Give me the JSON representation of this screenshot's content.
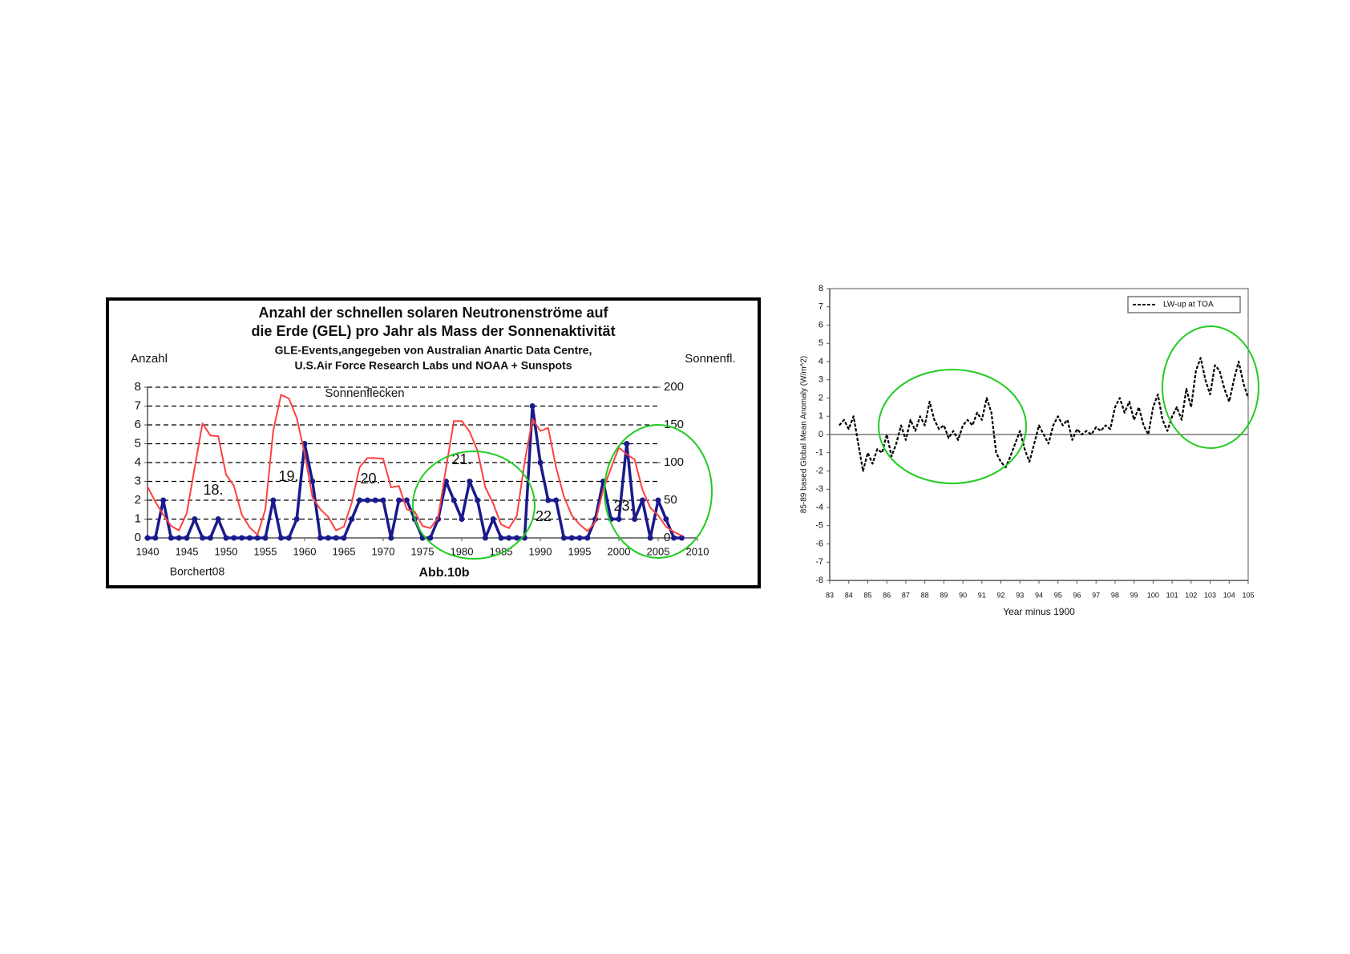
{
  "chart_data": [
    {
      "type": "line",
      "title": [
        "Anzahl der schnellen solaren Neutronenströme auf",
        "die Erde (GEL) pro Jahr als Mass der Sonnenaktivität"
      ],
      "subtitle": [
        "GLE-Events,angegeben von Australian Anartic Data Centre,",
        "U.S.Air Force Research Labs und NOAA + Sunspots"
      ],
      "ylabel": "Anzahl",
      "y2label": "Sonnenfl.",
      "annotations": [
        "Sonnenflecken",
        "18.",
        "19.",
        "20.",
        "21.",
        "22",
        "23.",
        "Borchert08",
        "Abb.10b"
      ],
      "xlim": [
        1940,
        2010
      ],
      "xticks": [
        1940,
        1945,
        1950,
        1955,
        1960,
        1965,
        1970,
        1975,
        1980,
        1985,
        1990,
        1995,
        2000,
        2005,
        2010
      ],
      "ylim": [
        0,
        8
      ],
      "yticks": [
        0,
        1,
        2,
        3,
        4,
        5,
        6,
        7,
        8
      ],
      "y2lim": [
        0,
        200
      ],
      "y2ticks": [
        0,
        50,
        100,
        150,
        200
      ],
      "grid": true,
      "x": [
        1940,
        1941,
        1942,
        1943,
        1944,
        1945,
        1946,
        1947,
        1948,
        1949,
        1950,
        1951,
        1952,
        1953,
        1954,
        1955,
        1956,
        1957,
        1958,
        1959,
        1960,
        1961,
        1962,
        1963,
        1964,
        1965,
        1966,
        1967,
        1968,
        1969,
        1970,
        1971,
        1972,
        1973,
        1974,
        1975,
        1976,
        1977,
        1978,
        1979,
        1980,
        1981,
        1982,
        1983,
        1984,
        1985,
        1986,
        1987,
        1988,
        1989,
        1990,
        1991,
        1992,
        1993,
        1994,
        1995,
        1996,
        1997,
        1998,
        1999,
        2000,
        2001,
        2002,
        2003,
        2004,
        2005,
        2006,
        2007,
        2008
      ],
      "series": [
        {
          "color": "#1a1a8c",
          "markers": true,
          "values": [
            0,
            0,
            2,
            0,
            0,
            0,
            1,
            0,
            0,
            1,
            0,
            0,
            0,
            0,
            0,
            0,
            2,
            0,
            0,
            1,
            5,
            3,
            0,
            0,
            0,
            0,
            1,
            2,
            2,
            2,
            2,
            0,
            2,
            2,
            1,
            0,
            0,
            1,
            3,
            2,
            1,
            3,
            2,
            0,
            1,
            0,
            0,
            0,
            0,
            7,
            4,
            2,
            2,
            0,
            0,
            0,
            0,
            1,
            3,
            1,
            1,
            5,
            1,
            2,
            0,
            2,
            1,
            0,
            0
          ]
        },
        {
          "name": "Sonnenflecken",
          "color": "#ff4040",
          "axis": "y2",
          "values": [
            68,
            48,
            31,
            16,
            10,
            33,
            93,
            152,
            136,
            135,
            84,
            69,
            31,
            14,
            4,
            38,
            142,
            190,
            185,
            159,
            112,
            54,
            38,
            28,
            10,
            15,
            47,
            94,
            106,
            106,
            105,
            67,
            69,
            38,
            35,
            16,
            13,
            27,
            93,
            155,
            155,
            141,
            116,
            67,
            46,
            18,
            13,
            29,
            100,
            158,
            142,
            146,
            94,
            55,
            30,
            18,
            9,
            21,
            64,
            93,
            120,
            111,
            104,
            64,
            40,
            30,
            15,
            8,
            3
          ]
        }
      ]
    },
    {
      "type": "line",
      "xlabel": "Year minus 1900",
      "ylabel": "85-89 based Global Mean Anomaly  (W/m^2)",
      "xlim": [
        83,
        105
      ],
      "xticks": [
        83,
        84,
        85,
        86,
        87,
        88,
        89,
        90,
        91,
        92,
        93,
        94,
        95,
        96,
        97,
        98,
        99,
        100,
        101,
        102,
        103,
        104,
        105
      ],
      "ylim": [
        -8,
        8
      ],
      "yticks": [
        -8,
        -7,
        -6,
        -5,
        -4,
        -3,
        -2,
        -1,
        0,
        1,
        2,
        3,
        4,
        5,
        6,
        7,
        8
      ],
      "legend": "top-right",
      "x": [
        83.5,
        83.75,
        84,
        84.25,
        84.5,
        84.75,
        85,
        85.25,
        85.5,
        85.75,
        86,
        86.25,
        86.5,
        86.75,
        87,
        87.25,
        87.5,
        87.75,
        88,
        88.25,
        88.5,
        88.75,
        89,
        89.25,
        89.5,
        89.75,
        90,
        90.25,
        90.5,
        90.75,
        91,
        91.25,
        91.5,
        91.75,
        92,
        92.25,
        92.5,
        92.75,
        93,
        93.25,
        93.5,
        93.75,
        94,
        94.25,
        94.5,
        94.75,
        95,
        95.25,
        95.5,
        95.75,
        96,
        96.25,
        96.5,
        96.75,
        97,
        97.25,
        97.5,
        97.75,
        98,
        98.25,
        98.5,
        98.75,
        99,
        99.25,
        99.5,
        99.75,
        100,
        100.25,
        100.5,
        100.75,
        101,
        101.25,
        101.5,
        101.75,
        102,
        102.25,
        102.5,
        102.75,
        103,
        103.25,
        103.5,
        103.75,
        104,
        104.25,
        104.5,
        104.75,
        105
      ],
      "series": [
        {
          "name": "LW-up at TOA",
          "color": "#000000",
          "dashed": true,
          "values": [
            0.5,
            0.8,
            0.3,
            1.0,
            -0.5,
            -2.0,
            -1.0,
            -1.6,
            -0.8,
            -1.0,
            0.0,
            -1.2,
            -0.5,
            0.5,
            -0.3,
            0.8,
            0.2,
            1.0,
            0.5,
            1.8,
            0.8,
            0.3,
            0.5,
            -0.2,
            0.2,
            -0.3,
            0.5,
            0.8,
            0.5,
            1.2,
            0.8,
            2.0,
            1.2,
            -1.0,
            -1.5,
            -1.8,
            -1.2,
            -0.5,
            0.2,
            -0.8,
            -1.5,
            -0.5,
            0.5,
            0.0,
            -0.5,
            0.5,
            1.0,
            0.5,
            0.8,
            -0.3,
            0.3,
            0.0,
            0.2,
            0.0,
            0.4,
            0.2,
            0.5,
            0.3,
            1.5,
            2.0,
            1.2,
            1.8,
            0.8,
            1.5,
            0.5,
            0.0,
            1.5,
            2.2,
            0.8,
            0.2,
            1.0,
            1.5,
            0.8,
            2.5,
            1.5,
            3.5,
            4.2,
            3.0,
            2.2,
            3.8,
            3.5,
            2.5,
            1.8,
            3.0,
            4.0,
            2.8,
            2.0
          ]
        }
      ]
    }
  ]
}
